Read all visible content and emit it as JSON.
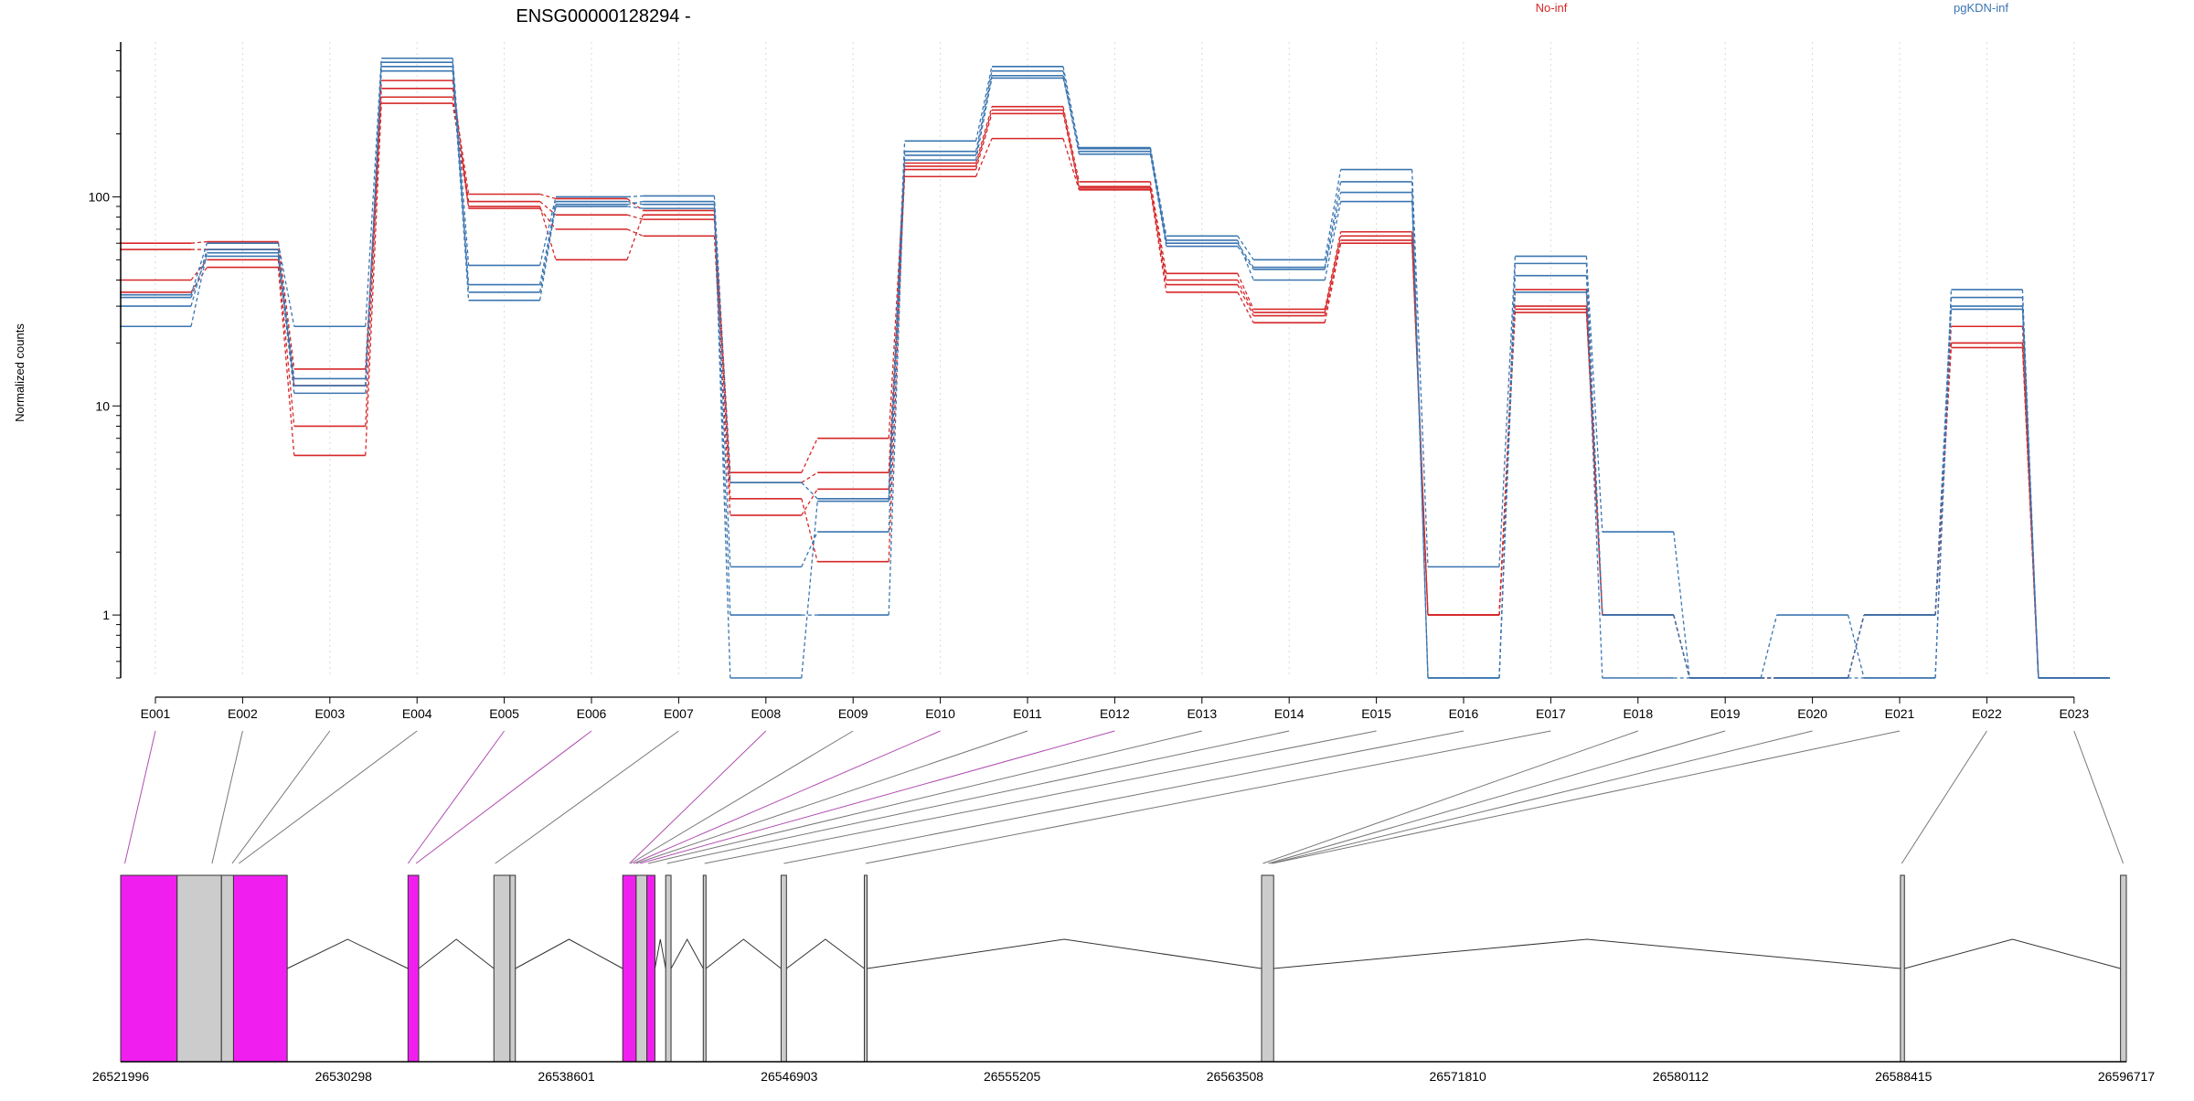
{
  "chart_data": {
    "type": "line",
    "title": "ENSG00000128294 -",
    "ylabel": "Normalized counts",
    "yscale": "log",
    "ylim": [
      0.5,
      550
    ],
    "yticks": [
      1,
      10,
      100
    ],
    "ytick_labels": [
      "1",
      "10",
      "100"
    ],
    "grid": "vertical dotted",
    "legend_placement": "top",
    "categories": [
      "E001",
      "E002",
      "E003",
      "E004",
      "E005",
      "E006",
      "E007",
      "E008",
      "E009",
      "E010",
      "E011",
      "E012",
      "E013",
      "E014",
      "E015",
      "E016",
      "E017",
      "E018",
      "E019",
      "E020",
      "E021",
      "E022",
      "E023"
    ],
    "groups": [
      {
        "name": "No-inf",
        "color": "#d62728"
      },
      {
        "name": "pgKDN-inf",
        "color": "#3a75b0"
      }
    ],
    "series": [
      {
        "group": "No-inf",
        "values": [
          60,
          61,
          15,
          330,
          103,
          98,
          86,
          4.8,
          7.0,
          145,
          270,
          118,
          43,
          29,
          68,
          1.0,
          36,
          1.0,
          0.5,
          0.5,
          1.0,
          24,
          0.5
        ]
      },
      {
        "group": "No-inf",
        "values": [
          56,
          56,
          12.5,
          300,
          95,
          82,
          78,
          4.3,
          4.8,
          135,
          250,
          110,
          38,
          27,
          62,
          1.0,
          30,
          1.0,
          0.5,
          0.5,
          1.0,
          20,
          0.5
        ]
      },
      {
        "group": "No-inf",
        "values": [
          40,
          50,
          8.0,
          360,
          88,
          70,
          65,
          3.0,
          4.0,
          125,
          190,
          108,
          35,
          25,
          60,
          1.0,
          28,
          1.0,
          0.5,
          0.5,
          1.0,
          19,
          0.5
        ]
      },
      {
        "group": "No-inf",
        "values": [
          35,
          46,
          5.8,
          280,
          90,
          50,
          82,
          3.6,
          1.8,
          140,
          260,
          112,
          40,
          28,
          65,
          1.0,
          29,
          1.0,
          0.5,
          0.5,
          1.0,
          20,
          0.5
        ]
      },
      {
        "group": "pgKDN-inf",
        "values": [
          34,
          60,
          24,
          460,
          47,
          100,
          101,
          4.3,
          3.6,
          185,
          420,
          172,
          65,
          50,
          135,
          1.7,
          52,
          2.5,
          0.5,
          1.0,
          0.5,
          36,
          0.5
        ]
      },
      {
        "group": "pgKDN-inf",
        "values": [
          30,
          56,
          13.5,
          420,
          38,
          95,
          92,
          1.7,
          2.5,
          165,
          400,
          165,
          60,
          46,
          118,
          0.5,
          48,
          1.0,
          0.5,
          0.5,
          1.0,
          33,
          0.5
        ]
      },
      {
        "group": "pgKDN-inf",
        "values": [
          33,
          52,
          11.5,
          440,
          35,
          90,
          88,
          1.0,
          1.0,
          158,
          380,
          160,
          58,
          45,
          105,
          0.5,
          42,
          1.0,
          0.5,
          0.5,
          1.0,
          30,
          0.5
        ]
      },
      {
        "group": "pgKDN-inf",
        "values": [
          24,
          54,
          12.5,
          400,
          32,
          92,
          95,
          0.5,
          3.5,
          150,
          370,
          170,
          62,
          40,
          95,
          0.5,
          35,
          0.5,
          0.5,
          0.5,
          0.5,
          29,
          0.5
        ]
      }
    ],
    "gene_model": {
      "coord_min": 26521996,
      "coord_max": 26596717,
      "coord_ticks": [
        26521996,
        26530298,
        26538601,
        26546903,
        26555205,
        26563508,
        26571810,
        26580112,
        26588415,
        26596717
      ],
      "coord_tick_labels": [
        "26521996",
        "26530298",
        "26538601",
        "26546903",
        "26555205",
        "26563508",
        "26571810",
        "26580112",
        "26588415",
        "26596717"
      ],
      "highlight_color": "#f01ff0",
      "exon_color": "#cccccc",
      "exons": [
        {
          "start": 26521996,
          "end": 26524100,
          "hl": true
        },
        {
          "start": 26524100,
          "end": 26525750,
          "hl": false
        },
        {
          "start": 26525750,
          "end": 26526200,
          "hl": false
        },
        {
          "start": 26526200,
          "end": 26528200,
          "hl": true
        },
        {
          "start": 26532700,
          "end": 26533100,
          "hl": true
        },
        {
          "start": 26535900,
          "end": 26536500,
          "hl": false
        },
        {
          "start": 26536500,
          "end": 26536700,
          "hl": false
        },
        {
          "start": 26540700,
          "end": 26541200,
          "hl": true
        },
        {
          "start": 26541200,
          "end": 26541600,
          "hl": false
        },
        {
          "start": 26541600,
          "end": 26541900,
          "hl": true
        },
        {
          "start": 26542300,
          "end": 26542500,
          "hl": false
        },
        {
          "start": 26543700,
          "end": 26543800,
          "hl": false
        },
        {
          "start": 26546600,
          "end": 26546800,
          "hl": false
        },
        {
          "start": 26549700,
          "end": 26549800,
          "hl": false
        },
        {
          "start": 26564500,
          "end": 26564950,
          "hl": false
        },
        {
          "start": 26588300,
          "end": 26588450,
          "hl": false
        },
        {
          "start": 26596500,
          "end": 26596717,
          "hl": false
        }
      ],
      "exon_positions": [
        26522150,
        26525400,
        26526150,
        26526400,
        26532700,
        26533000,
        26535950,
        26540950,
        26541000,
        26541100,
        26541200,
        26541350,
        26541650,
        26542350,
        26543750,
        26546700,
        26549750,
        26564550,
        26564750,
        26564850,
        26564900,
        26588350,
        26596600
      ],
      "exon_link_hl": [
        true,
        false,
        false,
        false,
        true,
        true,
        false,
        true,
        false,
        true,
        false,
        true,
        false,
        false,
        false,
        false,
        false,
        false,
        false,
        false,
        false,
        false,
        false
      ]
    }
  }
}
